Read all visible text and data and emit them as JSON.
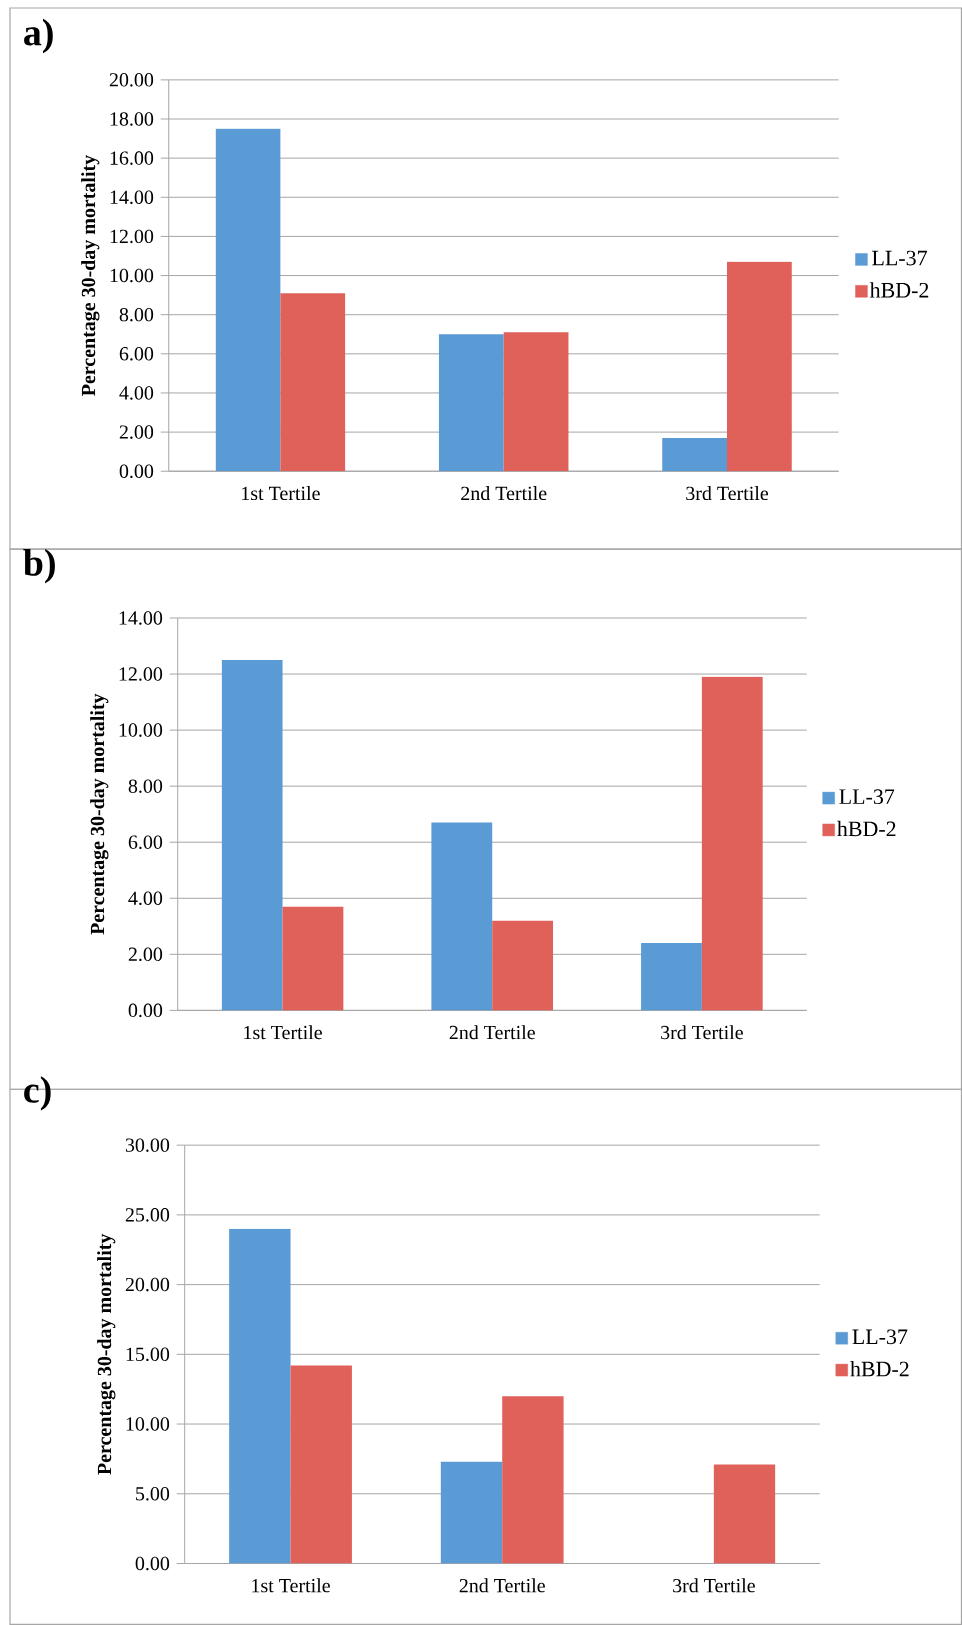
{
  "chart_data": [
    {
      "type": "bar",
      "title": "a)",
      "ylabel": "Percentage 30-day mortality",
      "categories": [
        "1st Tertile",
        "2nd Tertile",
        "3rd Tertile"
      ],
      "series": [
        {
          "name": "LL-37",
          "color": "#5b9bd5",
          "values": [
            17.5,
            7.0,
            1.7
          ]
        },
        {
          "name": "hBD-2",
          "color": "#e0605a",
          "values": [
            9.1,
            7.1,
            10.7
          ]
        }
      ],
      "ylim": [
        0,
        20
      ],
      "yticks": [
        {
          "value": 0,
          "label": "0.00"
        },
        {
          "value": 2,
          "label": "2.00"
        },
        {
          "value": 4,
          "label": "4.00"
        },
        {
          "value": 6,
          "label": "6.00"
        },
        {
          "value": 8,
          "label": "8.00"
        },
        {
          "value": 10,
          "label": "10.00"
        },
        {
          "value": 12,
          "label": "12.00"
        },
        {
          "value": 14,
          "label": "14.00"
        },
        {
          "value": 16,
          "label": "16.00"
        },
        {
          "value": 18,
          "label": "18.00"
        },
        {
          "value": 20,
          "label": "20.00"
        }
      ],
      "grid": "y",
      "legend": "right"
    },
    {
      "type": "bar",
      "title": "b)",
      "ylabel": "Percentage 30-day mortality",
      "categories": [
        "1st Tertile",
        "2nd Tertile",
        "3rd Tertile"
      ],
      "series": [
        {
          "name": "LL-37",
          "color": "#5b9bd5",
          "values": [
            12.5,
            6.7,
            2.4
          ]
        },
        {
          "name": "hBD-2",
          "color": "#e0605a",
          "values": [
            3.7,
            3.2,
            11.9
          ]
        }
      ],
      "ylim": [
        0,
        14
      ],
      "yticks": [
        {
          "value": 0,
          "label": "0.00"
        },
        {
          "value": 2,
          "label": "2.00"
        },
        {
          "value": 4,
          "label": "4.00"
        },
        {
          "value": 6,
          "label": "6.00"
        },
        {
          "value": 8,
          "label": "8.00"
        },
        {
          "value": 10,
          "label": "10.00"
        },
        {
          "value": 12,
          "label": "12.00"
        },
        {
          "value": 14,
          "label": "14.00"
        }
      ],
      "grid": "y",
      "legend": "right"
    },
    {
      "type": "bar",
      "title": "c)",
      "ylabel": "Percentage 30-day mortality",
      "categories": [
        "1st Tertile",
        "2nd Tertile",
        "3rd Tertile"
      ],
      "series": [
        {
          "name": "LL-37",
          "color": "#5b9bd5",
          "values": [
            24.0,
            7.3,
            0
          ]
        },
        {
          "name": "hBD-2",
          "color": "#e0605a",
          "values": [
            14.2,
            12.0,
            7.1
          ]
        }
      ],
      "ylim": [
        0,
        30
      ],
      "yticks": [
        {
          "value": 0,
          "label": "0.00"
        },
        {
          "value": 5,
          "label": "5.00"
        },
        {
          "value": 10,
          "label": "10.00"
        },
        {
          "value": 15,
          "label": "15.00"
        },
        {
          "value": 20,
          "label": "20.00"
        },
        {
          "value": 25,
          "label": "25.00"
        },
        {
          "value": 30,
          "label": "30.00"
        }
      ],
      "grid": "y",
      "legend": "right"
    }
  ]
}
